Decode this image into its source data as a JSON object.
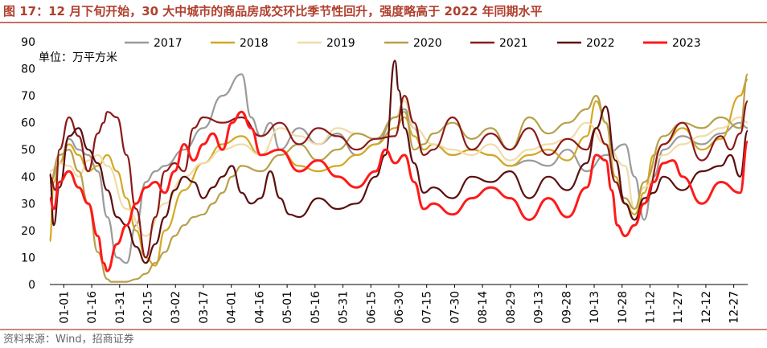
{
  "chart_data": {
    "type": "line",
    "title": "图 17：12 月下旬开始，30 大中城市的商品房成交环比季节性回升，强度略高于 2022 年同期水平",
    "ylabel": "单位：万平方米",
    "xlabel": "",
    "source": "资料来源：Wind，招商证券",
    "ylim": [
      0,
      90
    ],
    "yticks": [
      0,
      10,
      20,
      30,
      40,
      50,
      60,
      70,
      80,
      90
    ],
    "x_ticks": [
      "01-01",
      "01-16",
      "01-31",
      "02-15",
      "03-02",
      "03-17",
      "04-01",
      "04-16",
      "05-01",
      "05-16",
      "05-31",
      "06-15",
      "06-30",
      "07-15",
      "07-30",
      "08-14",
      "08-29",
      "09-13",
      "09-28",
      "10-13",
      "10-28",
      "11-12",
      "11-27",
      "12-12",
      "12-27"
    ],
    "x_range": [
      0,
      364
    ],
    "grid": false,
    "legend_position": "top",
    "series": [
      {
        "name": "2017",
        "color": "#9a9a9a",
        "x": [
          0,
          5,
          10,
          15,
          20,
          25,
          30,
          35,
          40,
          45,
          50,
          55,
          60,
          70,
          80,
          90,
          100,
          105,
          110,
          115,
          120,
          130,
          140,
          150,
          160,
          170,
          180,
          185,
          190,
          195,
          200,
          210,
          220,
          230,
          240,
          250,
          260,
          270,
          280,
          290,
          300,
          305,
          310,
          315,
          320,
          330,
          340,
          350,
          360,
          364
        ],
        "values": [
          38,
          45,
          54,
          50,
          48,
          42,
          25,
          10,
          8,
          22,
          38,
          42,
          44,
          50,
          58,
          70,
          78,
          62,
          55,
          60,
          50,
          58,
          52,
          56,
          48,
          52,
          62,
          65,
          58,
          50,
          52,
          48,
          50,
          48,
          44,
          46,
          44,
          50,
          42,
          48,
          52,
          40,
          24,
          40,
          50,
          55,
          52,
          56,
          60,
          58
        ]
      },
      {
        "name": "2018",
        "color": "#d4a823",
        "x": [
          0,
          2,
          5,
          10,
          15,
          20,
          25,
          30,
          35,
          40,
          45,
          50,
          55,
          60,
          70,
          80,
          90,
          100,
          110,
          120,
          130,
          140,
          150,
          160,
          170,
          180,
          185,
          190,
          195,
          200,
          210,
          220,
          230,
          240,
          250,
          260,
          270,
          280,
          285,
          290,
          295,
          300,
          305,
          310,
          315,
          320,
          330,
          340,
          350,
          360,
          364
        ],
        "values": [
          16,
          38,
          45,
          52,
          48,
          42,
          44,
          48,
          42,
          32,
          20,
          10,
          7,
          20,
          35,
          45,
          52,
          55,
          48,
          50,
          44,
          42,
          44,
          48,
          52,
          58,
          62,
          55,
          50,
          52,
          48,
          50,
          48,
          44,
          48,
          50,
          46,
          55,
          68,
          60,
          40,
          30,
          26,
          34,
          48,
          52,
          58,
          50,
          54,
          70,
          76
        ]
      },
      {
        "name": "2019",
        "color": "#f0dca8",
        "x": [
          0,
          5,
          10,
          15,
          20,
          25,
          30,
          40,
          50,
          60,
          70,
          80,
          90,
          100,
          110,
          120,
          130,
          140,
          150,
          160,
          170,
          180,
          185,
          190,
          200,
          210,
          220,
          230,
          240,
          250,
          260,
          270,
          280,
          290,
          300,
          305,
          310,
          320,
          330,
          340,
          350,
          360,
          364
        ],
        "values": [
          42,
          45,
          44,
          40,
          46,
          48,
          44,
          28,
          18,
          30,
          40,
          45,
          50,
          52,
          48,
          58,
          55,
          52,
          58,
          56,
          54,
          62,
          68,
          58,
          52,
          50,
          48,
          52,
          46,
          50,
          52,
          54,
          60,
          52,
          44,
          28,
          36,
          48,
          52,
          55,
          58,
          62,
          60
        ]
      },
      {
        "name": "2020",
        "color": "#b8a04a",
        "x": [
          0,
          5,
          10,
          15,
          20,
          25,
          30,
          32,
          35,
          40,
          45,
          50,
          55,
          60,
          65,
          70,
          75,
          80,
          85,
          90,
          95,
          100,
          110,
          120,
          130,
          140,
          150,
          160,
          170,
          180,
          185,
          190,
          195,
          200,
          210,
          220,
          230,
          240,
          250,
          260,
          270,
          280,
          285,
          290,
          295,
          300,
          305,
          310,
          320,
          330,
          340,
          350,
          360,
          364
        ],
        "values": [
          38,
          48,
          50,
          42,
          30,
          12,
          2,
          1,
          1,
          1,
          2,
          4,
          8,
          12,
          18,
          22,
          25,
          26,
          30,
          34,
          40,
          44,
          42,
          48,
          52,
          46,
          50,
          56,
          54,
          62,
          64,
          50,
          52,
          56,
          60,
          54,
          58,
          50,
          62,
          56,
          60,
          65,
          70,
          60,
          38,
          32,
          28,
          38,
          55,
          60,
          58,
          62,
          58,
          78
        ]
      },
      {
        "name": "2021",
        "color": "#8b1a1a",
        "x": [
          0,
          3,
          5,
          10,
          15,
          20,
          25,
          28,
          30,
          35,
          40,
          45,
          50,
          55,
          60,
          65,
          70,
          75,
          80,
          90,
          100,
          110,
          120,
          130,
          140,
          150,
          160,
          170,
          180,
          185,
          190,
          195,
          200,
          210,
          220,
          230,
          240,
          250,
          260,
          270,
          280,
          285,
          290,
          295,
          300,
          305,
          310,
          320,
          330,
          340,
          350,
          355,
          360,
          364
        ],
        "values": [
          40,
          35,
          50,
          62,
          55,
          42,
          56,
          60,
          64,
          62,
          48,
          28,
          10,
          25,
          42,
          45,
          42,
          58,
          62,
          60,
          62,
          55,
          60,
          52,
          58,
          55,
          50,
          54,
          55,
          70,
          60,
          48,
          50,
          62,
          50,
          56,
          50,
          58,
          48,
          54,
          50,
          58,
          52,
          38,
          30,
          24,
          30,
          52,
          60,
          46,
          55,
          50,
          56,
          68
        ]
      },
      {
        "name": "2022",
        "color": "#5c0f0f",
        "x": [
          0,
          2,
          5,
          10,
          15,
          20,
          25,
          30,
          35,
          40,
          45,
          50,
          55,
          60,
          65,
          70,
          75,
          80,
          85,
          90,
          95,
          100,
          105,
          110,
          115,
          120,
          125,
          130,
          140,
          150,
          160,
          170,
          175,
          180,
          182,
          185,
          190,
          195,
          200,
          210,
          220,
          230,
          240,
          250,
          260,
          270,
          280,
          285,
          290,
          295,
          300,
          305,
          310,
          315,
          320,
          330,
          340,
          350,
          355,
          360,
          364
        ],
        "values": [
          41,
          22,
          36,
          55,
          58,
          50,
          45,
          35,
          25,
          22,
          14,
          8,
          15,
          25,
          35,
          40,
          38,
          32,
          36,
          40,
          44,
          34,
          30,
          32,
          42,
          32,
          26,
          25,
          32,
          28,
          30,
          40,
          48,
          83,
          72,
          58,
          45,
          34,
          36,
          32,
          40,
          38,
          42,
          32,
          40,
          35,
          45,
          58,
          66,
          46,
          30,
          24,
          32,
          34,
          40,
          35,
          42,
          44,
          48,
          40,
          57
        ]
      },
      {
        "name": "2023",
        "color": "#ff1a1a",
        "x": [
          0,
          2,
          5,
          10,
          15,
          20,
          25,
          28,
          30,
          35,
          40,
          45,
          50,
          55,
          60,
          65,
          70,
          75,
          80,
          85,
          90,
          95,
          100,
          105,
          110,
          120,
          130,
          140,
          150,
          160,
          170,
          175,
          180,
          185,
          190,
          195,
          200,
          210,
          220,
          230,
          240,
          250,
          260,
          270,
          280,
          285,
          290,
          293,
          296,
          300,
          305,
          310,
          315,
          320,
          325,
          330,
          340,
          350,
          360,
          364
        ],
        "values": [
          32,
          28,
          38,
          42,
          36,
          30,
          18,
          8,
          5,
          15,
          22,
          30,
          36,
          38,
          34,
          42,
          52,
          46,
          52,
          56,
          50,
          60,
          64,
          58,
          48,
          50,
          42,
          46,
          40,
          36,
          42,
          50,
          45,
          48,
          38,
          28,
          30,
          26,
          32,
          36,
          32,
          24,
          32,
          25,
          36,
          48,
          46,
          35,
          22,
          18,
          22,
          30,
          38,
          45,
          46,
          40,
          30,
          38,
          34,
          53
        ]
      }
    ]
  }
}
